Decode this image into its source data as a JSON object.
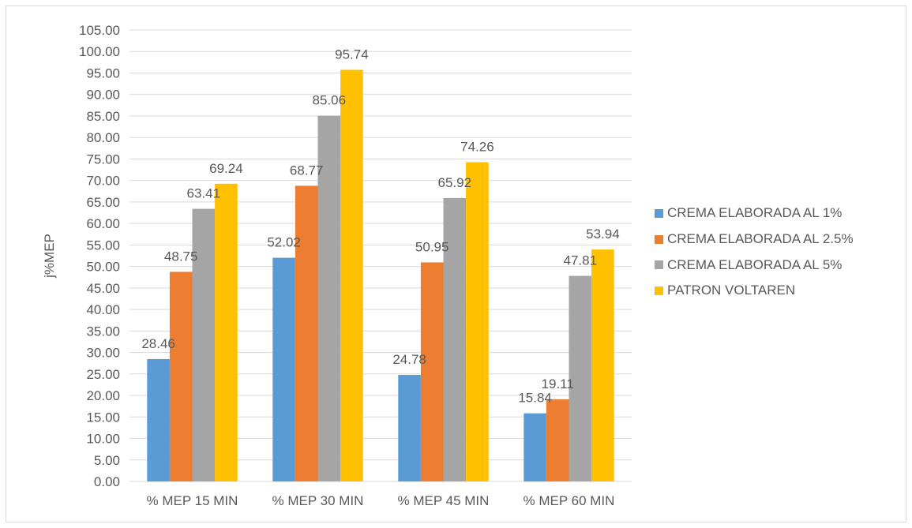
{
  "chart_data": {
    "type": "bar",
    "title": "",
    "xlabel": "",
    "ylabel": "j%MEP",
    "categories": [
      "% MEP 15 MIN",
      "% MEP 30 MIN",
      "% MEP 45 MIN",
      "% MEP 60 MIN"
    ],
    "ylim": [
      0,
      105
    ],
    "ytick_step": 5,
    "grid": true,
    "legend": "right",
    "series": [
      {
        "name": "CREMA ELABORADA AL 1%",
        "color": "#5b9bd5",
        "values": [
          28.46,
          52.02,
          24.78,
          15.84
        ]
      },
      {
        "name": "CREMA ELABORADA AL 2.5%",
        "color": "#ed7d31",
        "values": [
          48.75,
          68.77,
          50.95,
          19.11
        ]
      },
      {
        "name": "CREMA ELABORADA AL 5%",
        "color": "#a5a5a5",
        "values": [
          63.41,
          85.06,
          65.92,
          47.81
        ]
      },
      {
        "name": "PATRON VOLTAREN",
        "color": "#ffc000",
        "values": [
          69.24,
          95.74,
          74.26,
          53.94
        ]
      }
    ]
  }
}
